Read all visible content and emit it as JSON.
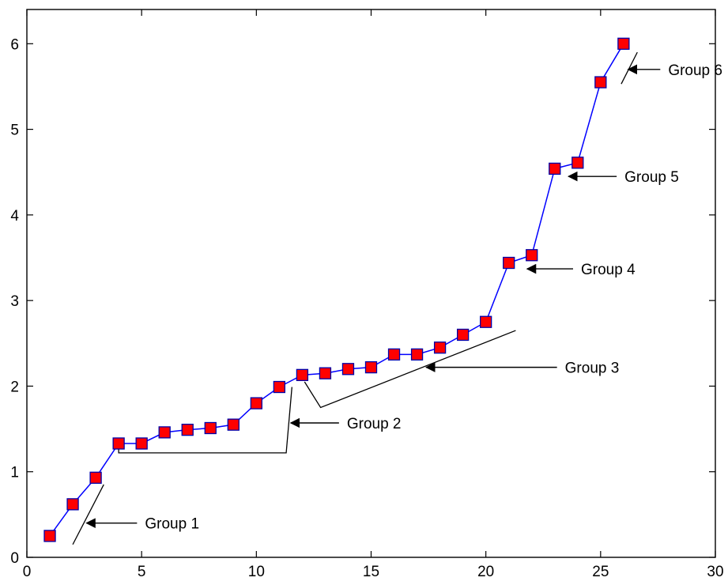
{
  "chart_data": {
    "type": "line",
    "title": "",
    "xlabel": "",
    "ylabel": "",
    "xlim": [
      0,
      30
    ],
    "ylim": [
      0,
      6.4
    ],
    "xticks": [
      0,
      5,
      10,
      15,
      20,
      25,
      30
    ],
    "yticks": [
      0,
      1,
      2,
      3,
      4,
      5,
      6
    ],
    "grid": false,
    "series": [
      {
        "line_color": "#0000ff",
        "marker": "square",
        "marker_fill": "#ff0000",
        "marker_edge": "#0000aa",
        "x": [
          1,
          2,
          3,
          4,
          5,
          6,
          7,
          8,
          9,
          10,
          11,
          12,
          13,
          14,
          15,
          16,
          17,
          18,
          19,
          20,
          21,
          22,
          23,
          24,
          25,
          26
        ],
        "y": [
          0.25,
          0.62,
          0.93,
          1.33,
          1.33,
          1.46,
          1.49,
          1.51,
          1.55,
          1.8,
          1.99,
          2.13,
          2.15,
          2.2,
          2.22,
          2.37,
          2.37,
          2.45,
          2.6,
          2.75,
          3.44,
          3.53,
          4.54,
          4.61,
          5.55,
          6.0
        ]
      }
    ],
    "annotations": [
      {
        "text": "Group 1",
        "bracket": [
          [
            2,
            0.15
          ],
          [
            3.35,
            0.85
          ]
        ],
        "arrow_from": [
          4.8,
          0.4
        ],
        "arrow_to": [
          2.6,
          0.4
        ]
      },
      {
        "text": "Group 2",
        "bracket": [
          [
            4,
            1.33
          ],
          [
            4,
            1.22
          ],
          [
            11.3,
            1.22
          ],
          [
            11.55,
            1.99
          ]
        ],
        "arrow_from": [
          13.6,
          1.57
        ],
        "arrow_to": [
          11.5,
          1.57
        ]
      },
      {
        "text": "Group 3",
        "bracket": [
          [
            12.1,
            2.05
          ],
          [
            12.8,
            1.75
          ],
          [
            21.3,
            2.65
          ]
        ],
        "arrow_from": [
          23.1,
          2.22
        ],
        "arrow_to": [
          17.4,
          2.22
        ]
      },
      {
        "text": "Group 4",
        "bracket": [],
        "arrow_from": [
          23.8,
          3.37
        ],
        "arrow_to": [
          21.8,
          3.37
        ]
      },
      {
        "text": "Group 5",
        "bracket": [],
        "arrow_from": [
          25.7,
          4.45
        ],
        "arrow_to": [
          23.6,
          4.45
        ]
      },
      {
        "text": "Group 6",
        "bracket": [
          [
            25.9,
            5.53
          ],
          [
            26.6,
            5.9
          ]
        ],
        "arrow_from": [
          27.6,
          5.7
        ],
        "arrow_to": [
          26.2,
          5.7
        ]
      }
    ]
  }
}
